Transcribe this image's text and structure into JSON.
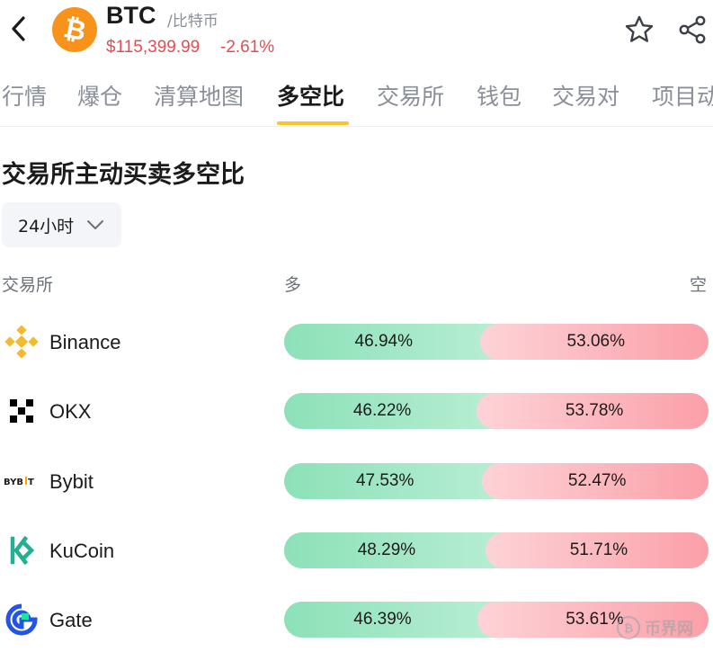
{
  "header": {
    "symbol": "BTC",
    "name_cn": "/比特币",
    "price": "$115,399.99",
    "change": "-2.61%",
    "price_color": "#e84b4f",
    "logo_color": "#f7931a",
    "logo_icon": "bitcoin-logo"
  },
  "tabs": [
    {
      "label": "行情"
    },
    {
      "label": "爆仓"
    },
    {
      "label": "清算地图"
    },
    {
      "label": "多空比",
      "active": true
    },
    {
      "label": "交易所"
    },
    {
      "label": "钱包"
    },
    {
      "label": "交易对"
    },
    {
      "label": "项目动"
    }
  ],
  "section": {
    "title": "交易所主动买卖多空比",
    "period": "24小时",
    "col_exchange": "交易所",
    "col_long": "多",
    "col_short": "空"
  },
  "colors": {
    "long": "#8ce1b9",
    "short": "#fb9fa8",
    "accent": "#f7c52b"
  },
  "rows": [
    {
      "name": "Binance",
      "icon": "binance-logo",
      "long": "46.94%",
      "short": "53.06%",
      "long_pct": 46.94
    },
    {
      "name": "OKX",
      "icon": "okx-logo",
      "long": "46.22%",
      "short": "53.78%",
      "long_pct": 46.22
    },
    {
      "name": "Bybit",
      "icon": "bybit-logo",
      "long": "47.53%",
      "short": "52.47%",
      "long_pct": 47.53
    },
    {
      "name": "KuCoin",
      "icon": "kucoin-logo",
      "long": "48.29%",
      "short": "51.71%",
      "long_pct": 48.29
    },
    {
      "name": "Gate",
      "icon": "gate-logo",
      "long": "46.39%",
      "short": "53.61%",
      "long_pct": 46.39
    }
  ],
  "watermark": "币界网"
}
